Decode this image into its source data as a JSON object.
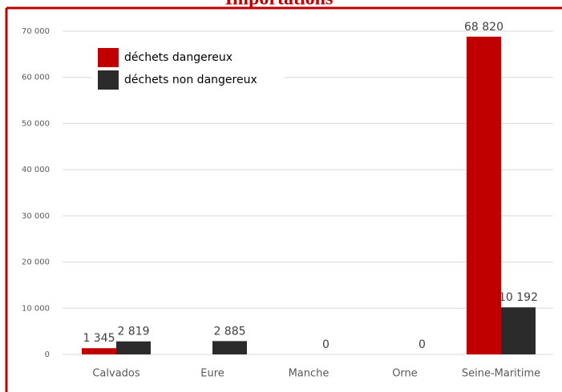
{
  "chart_data": {
    "type": "bar",
    "title": "Importations",
    "categories": [
      "Calvados",
      "Eure",
      "Manche",
      "Orne",
      "Seine-Maritime"
    ],
    "series": [
      {
        "name": "déchets dangereux",
        "color": "#c00000",
        "values": [
          1345,
          null,
          null,
          null,
          68820
        ],
        "value_labels": [
          "1 345",
          null,
          null,
          null,
          "68 820"
        ]
      },
      {
        "name": "déchets non dangereux",
        "color": "#2b2b2b",
        "values": [
          2819,
          2885,
          0,
          0,
          10192
        ],
        "value_labels": [
          "2 819",
          "2 885",
          "0",
          "0",
          "10 192"
        ]
      }
    ],
    "ylim": [
      0,
      70000
    ],
    "yticks": [
      0,
      {
        "value": 10000,
        "label": "10 000"
      },
      {
        "value": 20000,
        "label": "20 000"
      },
      {
        "value": 30000,
        "label": "30 000"
      },
      {
        "value": 40000,
        "label": "40 000"
      },
      {
        "value": 50000,
        "label": "50 000"
      },
      {
        "value": 60000,
        "label": "60 000"
      },
      {
        "value": 70000,
        "label": "70 000"
      }
    ],
    "grid": true,
    "legend": "upper left"
  }
}
